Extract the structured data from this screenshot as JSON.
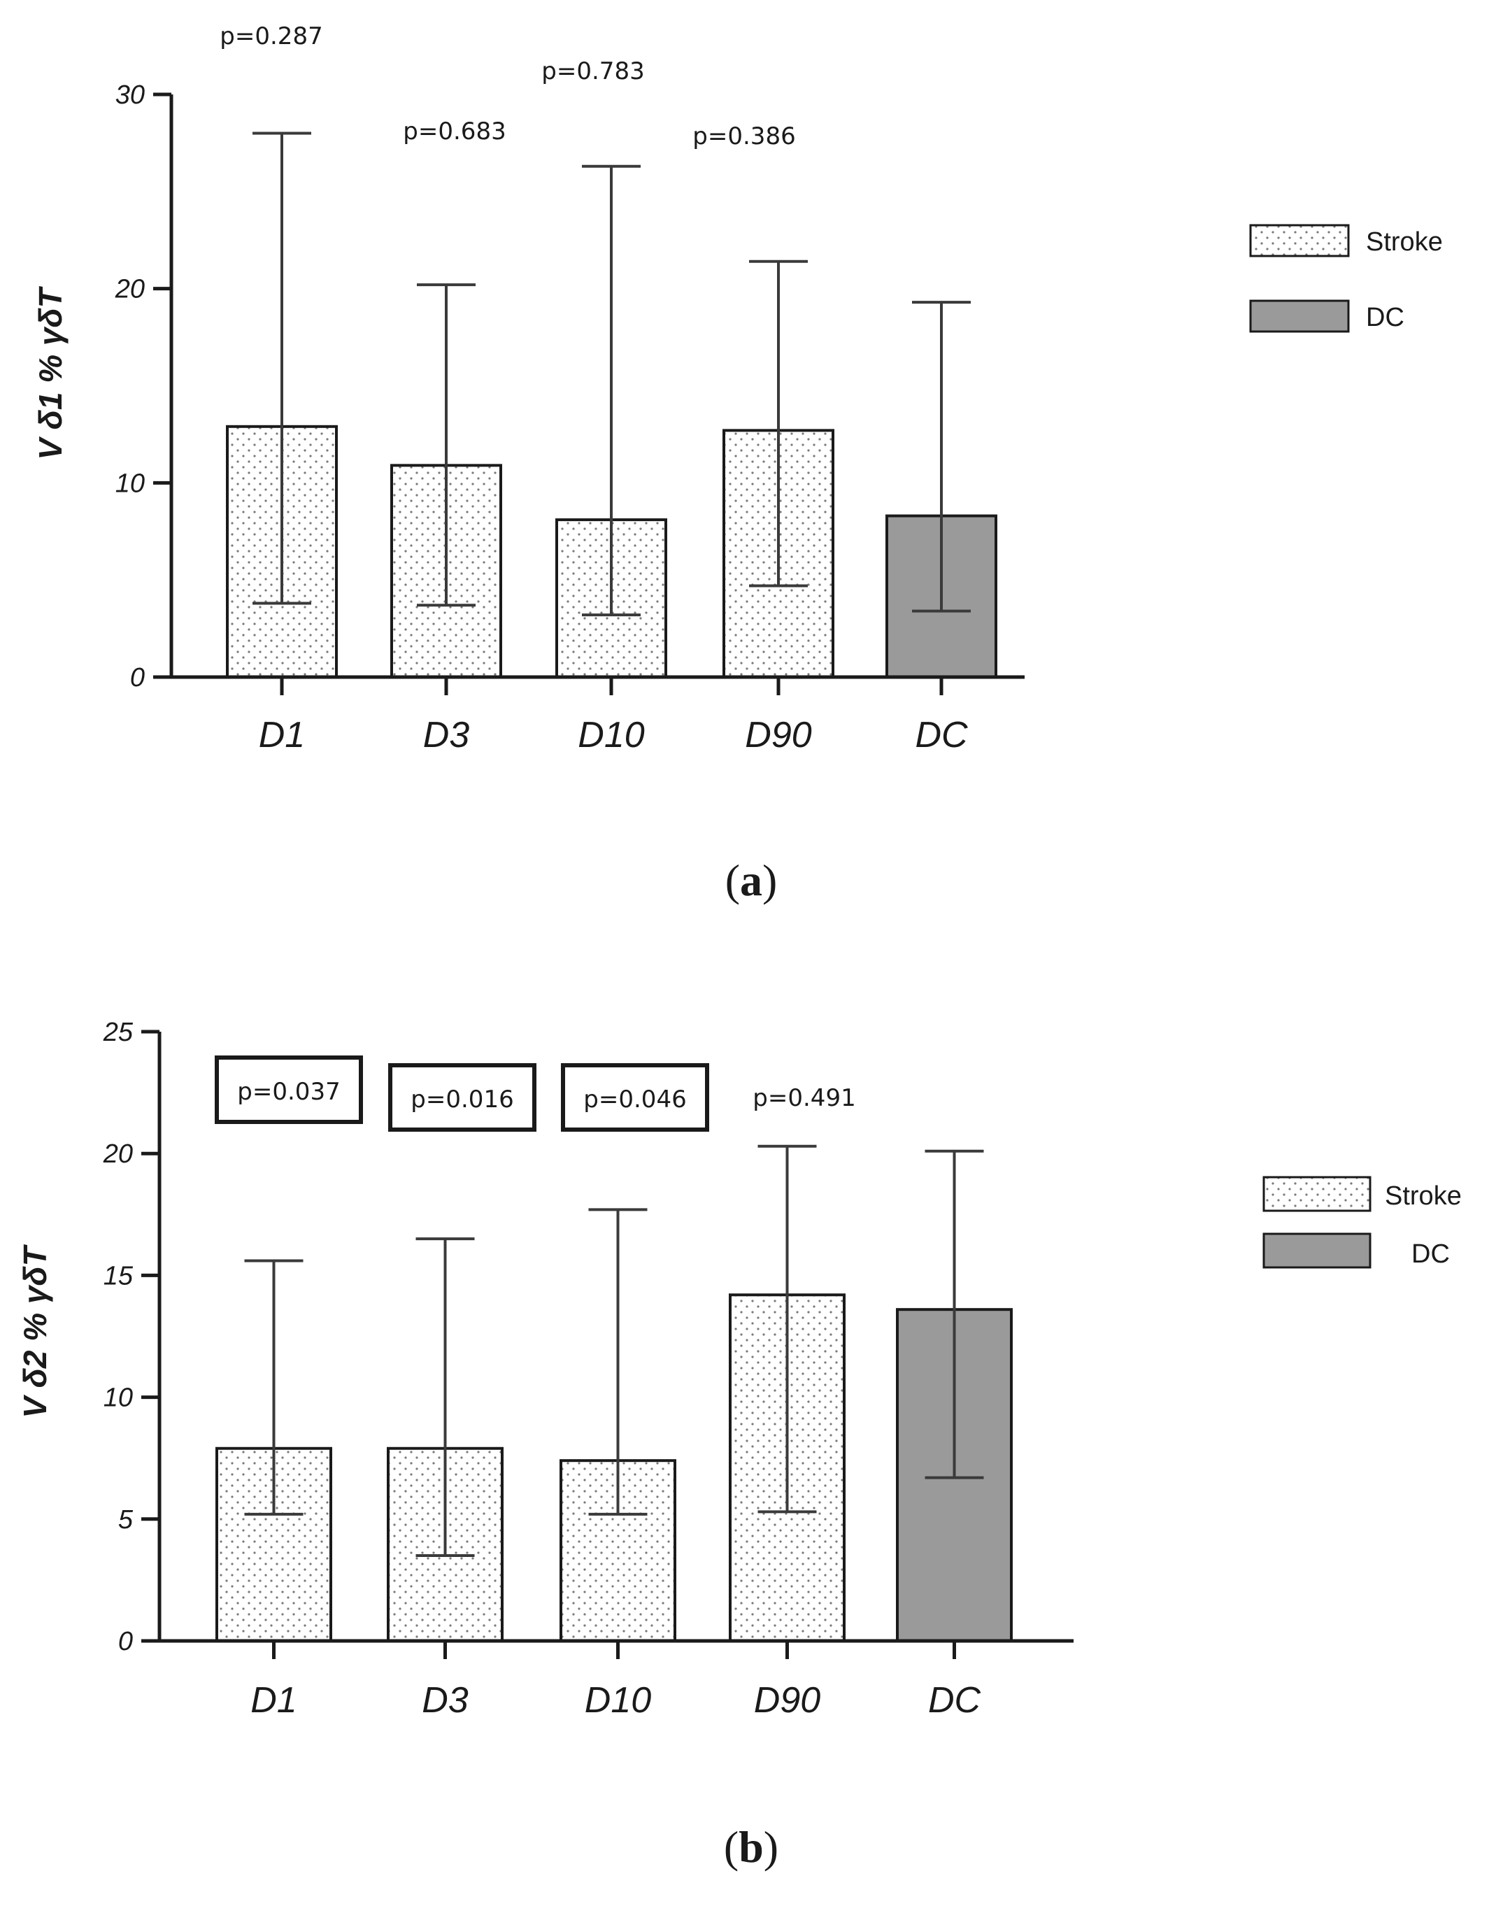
{
  "chart_data": [
    {
      "type": "bar",
      "panel_label": "a",
      "ylabel": "V δ1 % γδT",
      "categories": [
        "D1",
        "D3",
        "D10",
        "D90",
        "DC"
      ],
      "groups": [
        "Stroke",
        "Stroke",
        "Stroke",
        "Stroke",
        "DC"
      ],
      "values": [
        12.9,
        10.9,
        8.1,
        12.7,
        8.3
      ],
      "error_upper": [
        28.0,
        20.2,
        26.3,
        21.4,
        19.3
      ],
      "error_lower": [
        3.8,
        3.7,
        3.2,
        4.7,
        3.4
      ],
      "yticks": [
        0,
        10,
        20,
        30
      ],
      "ylim": [
        0,
        30
      ],
      "p_values": [
        "p=0.287",
        "p=0.683",
        "p=0.783",
        "p=0.386"
      ],
      "p_boxed": [
        false,
        false,
        false,
        false
      ],
      "legend": [
        "Stroke",
        "DC"
      ],
      "legend_position": "right"
    },
    {
      "type": "bar",
      "panel_label": "b",
      "ylabel": "V δ2 %  γδT",
      "categories": [
        "D1",
        "D3",
        "D10",
        "D90",
        "DC"
      ],
      "groups": [
        "Stroke",
        "Stroke",
        "Stroke",
        "Stroke",
        "DC"
      ],
      "values": [
        7.9,
        7.9,
        7.4,
        14.2,
        13.6
      ],
      "error_upper": [
        15.6,
        16.5,
        17.7,
        20.3,
        20.1
      ],
      "error_lower": [
        5.2,
        3.5,
        5.2,
        5.3,
        6.7
      ],
      "yticks": [
        0,
        5,
        10,
        15,
        20,
        25
      ],
      "ylim": [
        0,
        25
      ],
      "p_values": [
        "p=0.037",
        "p=0.016",
        "p=0.046",
        "p=0.491"
      ],
      "p_boxed": [
        true,
        true,
        true,
        false
      ],
      "legend": [
        "Stroke",
        "DC"
      ],
      "legend_position": "right"
    }
  ],
  "colors": {
    "stroke_fill": "#ffffff",
    "stroke_dots": "#7a7a7a",
    "dc_fill": "#9a9a9a",
    "axis": "#1a1a1a",
    "errorbar": "#3a3a3a"
  }
}
